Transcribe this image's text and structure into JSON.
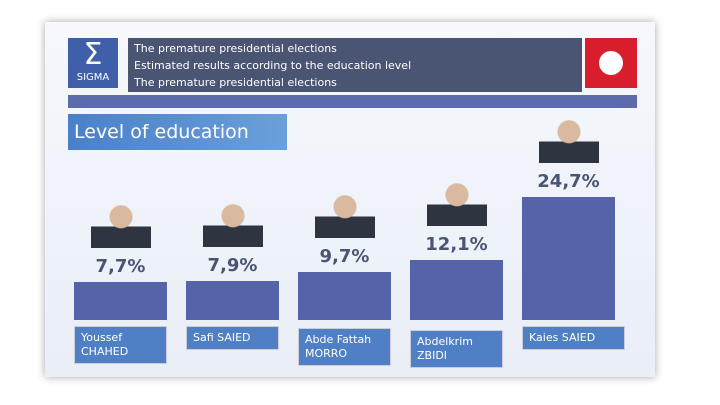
{
  "header": {
    "logo": {
      "symbol": "Σ",
      "name": "SIGMA"
    },
    "lines": [
      "The premature presidential elections",
      "Estimated results according to the education level",
      "The premature presidential elections"
    ]
  },
  "chart_data": {
    "type": "bar",
    "title": "Level of education",
    "categories": [
      "Youssef CHAHED",
      "Safi SAIED",
      "Abde Fattah MORRO",
      "Abdelkrim ZBIDI",
      "Kaies SAIED"
    ],
    "values": [
      7.7,
      7.9,
      9.7,
      12.1,
      24.7
    ],
    "value_labels": [
      "7,7%",
      "7,9%",
      "9,7%",
      "12,1%",
      "24,7%"
    ],
    "color": "#5563a8",
    "label_box_color": "#4f7fc4"
  }
}
